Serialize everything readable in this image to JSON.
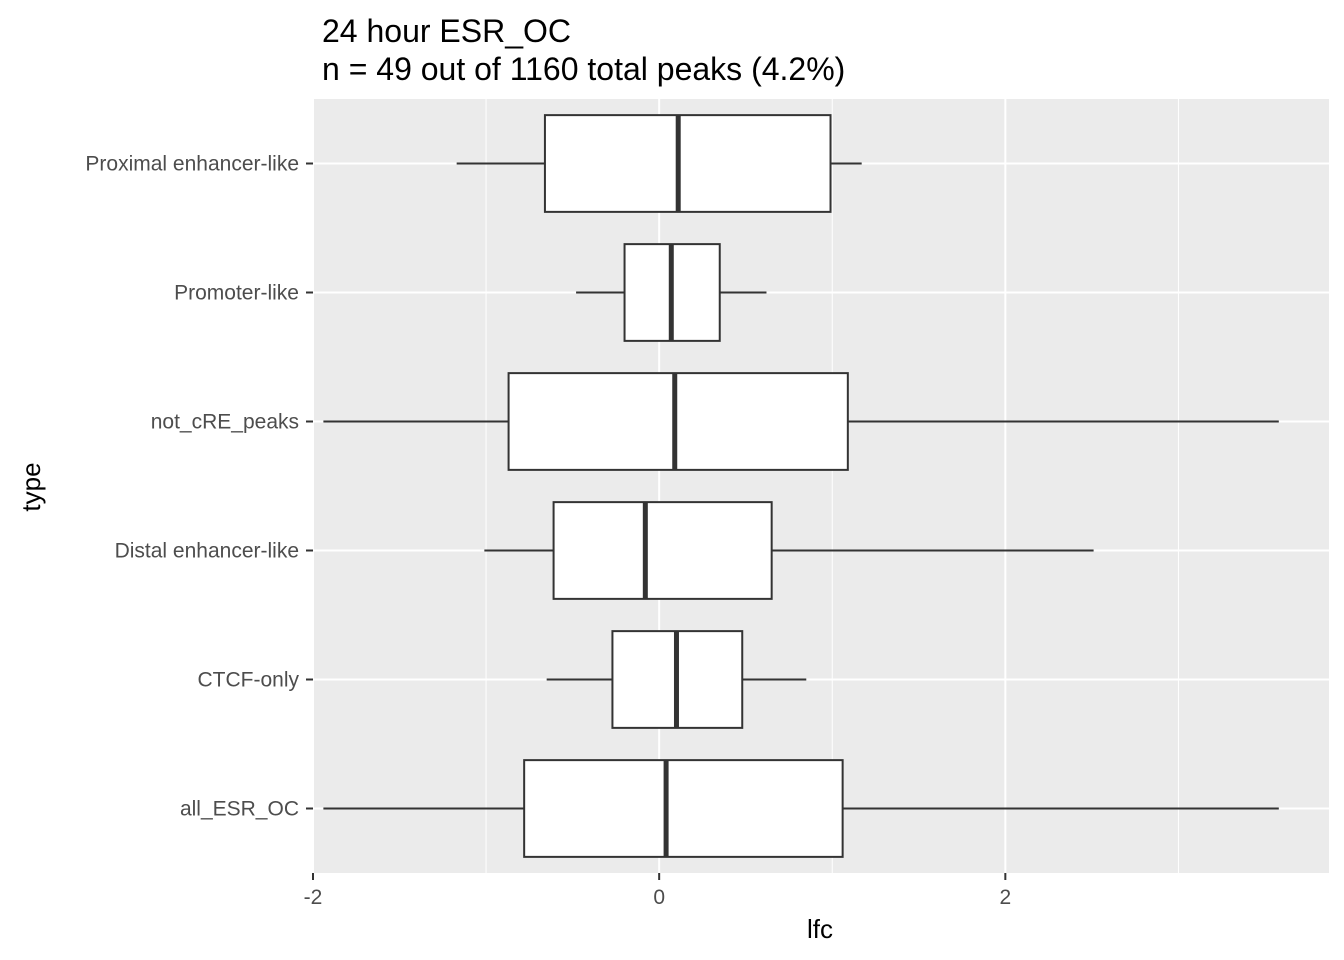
{
  "chart_data": {
    "type": "boxplot",
    "orientation": "horizontal",
    "title_lines": [
      "24 hour ESR_OC",
      "n = 49 out of 1160 total peaks (4.2%)"
    ],
    "xlabel": "lfc",
    "ylabel": "type",
    "xlim": [
      -2.0,
      3.87
    ],
    "x_ticks": [
      -2,
      0,
      2
    ],
    "x_tick_labels": [
      "-2",
      "0",
      "2"
    ],
    "grid": true,
    "panel_background": "#ebebeb",
    "box_fill": "#ffffff",
    "box_stroke": "#333333",
    "categories": [
      "Proximal enhancer-like",
      "Promoter-like",
      "not_cRE_peaks",
      "Distal enhancer-like",
      "CTCF-only",
      "all_ESR_OC"
    ],
    "boxes": [
      {
        "category": "Proximal enhancer-like",
        "whisker_low": -1.17,
        "q1": -0.66,
        "median": 0.11,
        "q3": 0.99,
        "whisker_high": 1.17
      },
      {
        "category": "Promoter-like",
        "whisker_low": -0.48,
        "q1": -0.2,
        "median": 0.07,
        "q3": 0.35,
        "whisker_high": 0.62
      },
      {
        "category": "not_cRE_peaks",
        "whisker_low": -1.94,
        "q1": -0.87,
        "median": 0.09,
        "q3": 1.09,
        "whisker_high": 3.58
      },
      {
        "category": "Distal enhancer-like",
        "whisker_low": -1.01,
        "q1": -0.61,
        "median": -0.08,
        "q3": 0.65,
        "whisker_high": 2.51
      },
      {
        "category": "CTCF-only",
        "whisker_low": -0.65,
        "q1": -0.27,
        "median": 0.1,
        "q3": 0.48,
        "whisker_high": 0.85
      },
      {
        "category": "all_ESR_OC",
        "whisker_low": -1.94,
        "q1": -0.78,
        "median": 0.04,
        "q3": 1.06,
        "whisker_high": 3.58
      }
    ]
  }
}
